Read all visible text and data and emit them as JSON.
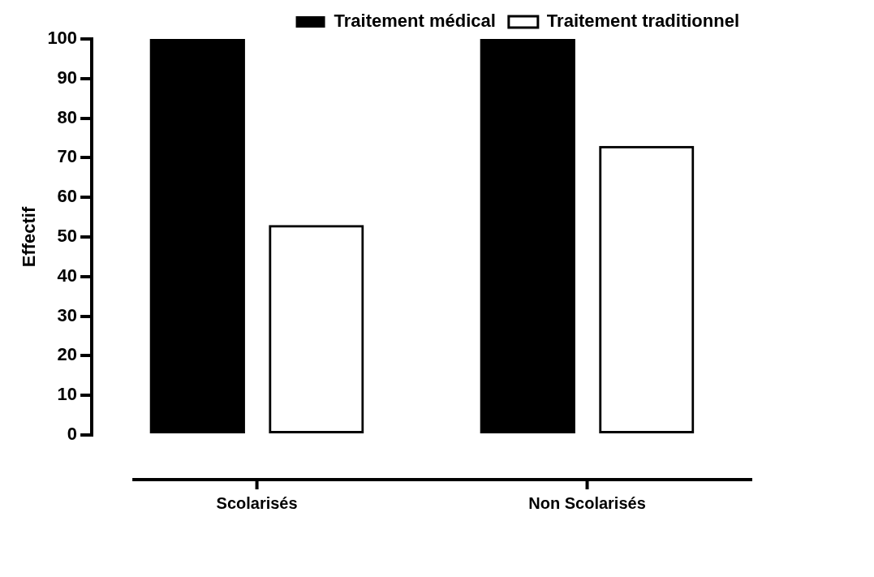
{
  "chart_data": {
    "type": "bar",
    "ylabel": "Effectif",
    "categories": [
      "Scolarisés",
      "Non Scolarisés"
    ],
    "series": [
      {
        "name": "Traitement médical",
        "color": "#000000",
        "values": [
          100,
          100
        ]
      },
      {
        "name": "Traitement traditionnel",
        "color": "#000000",
        "values": [
          53,
          73
        ]
      }
    ],
    "ylim": [
      0,
      100
    ],
    "yticks": [
      0,
      10,
      20,
      30,
      40,
      50,
      60,
      70,
      80,
      90,
      100
    ],
    "grid": false,
    "legend": "top right"
  }
}
